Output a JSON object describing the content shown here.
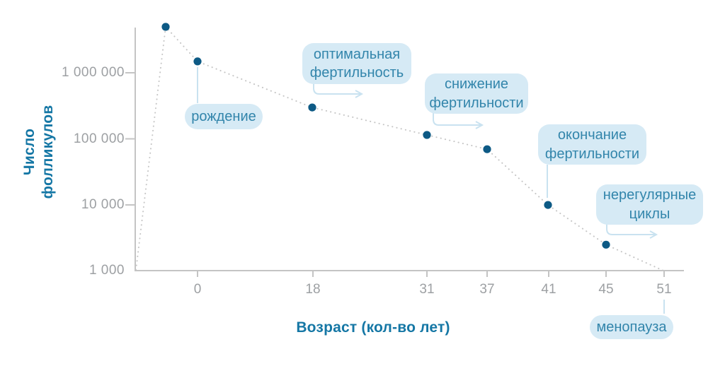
{
  "colors": {
    "accent": "#1577a5",
    "bubble_fill": "#d6eaf5",
    "bubble_text": "#3285ab",
    "dot": "#0d5a85",
    "curve": "#c6c6c6",
    "axis": "#c4c4c4",
    "tick_text": "#9da0a3",
    "connector": "#c9e2f0"
  },
  "chart_data": {
    "type": "line",
    "line_style": "dotted",
    "x_axis": {
      "label": "Возраст (кол-во лет)",
      "ticks": [
        0,
        18,
        31,
        37,
        41,
        45,
        51
      ],
      "tick_labels": [
        "0",
        "18",
        "31",
        "37",
        "41",
        "45",
        "51"
      ]
    },
    "y_axis": {
      "label": "Число фолликулов",
      "scale": "log",
      "ticks": [
        1000000,
        100000,
        10000,
        1000
      ],
      "tick_labels": [
        "1 000 000",
        "100 000",
        "10 000",
        "1 000"
      ]
    },
    "series": [
      {
        "name": "Число фолликулов",
        "points": [
          {
            "x": -5,
            "y": 5000000
          },
          {
            "x": 0,
            "y": 1500000
          },
          {
            "x": 18,
            "y": 300000
          },
          {
            "x": 31,
            "y": 115000
          },
          {
            "x": 37,
            "y": 70000
          },
          {
            "x": 41,
            "y": 10000
          },
          {
            "x": 45,
            "y": 2500
          },
          {
            "x": 51,
            "y": 1000,
            "marker": false
          }
        ]
      }
    ],
    "annotations": [
      {
        "label": "рождение",
        "x": 0
      },
      {
        "label": "оптимальная фертильность",
        "x": 18
      },
      {
        "label": "снижение фертильности",
        "x": 31
      },
      {
        "label": "окончание фертильности",
        "x": 41
      },
      {
        "label": "нерегулярные циклы",
        "x": 45
      },
      {
        "label": "менопауза",
        "x": 51
      }
    ]
  }
}
